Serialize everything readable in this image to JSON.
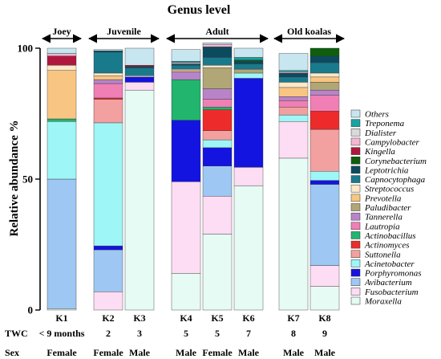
{
  "chart_data": {
    "type": "bar",
    "stacked": true,
    "title": "Genus level",
    "ylabel": "Relative abundance %",
    "ylim": [
      0,
      100
    ],
    "yticks": [
      "0",
      "50",
      "100"
    ],
    "categories": [
      "K1",
      "K2",
      "K3",
      "K4",
      "K5",
      "K6",
      "K7",
      "K8"
    ],
    "groups": [
      {
        "label": "Joey",
        "members": [
          "K1"
        ]
      },
      {
        "label": "Juvenile",
        "members": [
          "K2",
          "K3"
        ]
      },
      {
        "label": "Adult",
        "members": [
          "K4",
          "K5",
          "K6"
        ]
      },
      {
        "label": "Old koalas",
        "members": [
          "K7",
          "K8"
        ]
      }
    ],
    "rows": [
      {
        "label": "TWC",
        "values": [
          "< 9  months",
          "2",
          "3",
          "5",
          "5",
          "7",
          "8",
          "9"
        ]
      },
      {
        "label": "Sex",
        "values": [
          "Female",
          "Female",
          "Male",
          "Male",
          "Female",
          "Male",
          "Male",
          "Male"
        ]
      }
    ],
    "legend_position": "right",
    "series": [
      {
        "name": "Moraxella",
        "color": "#e6fbf3",
        "values": [
          0.5,
          0,
          84,
          14,
          29,
          47.5,
          58,
          9
        ]
      },
      {
        "name": "Fusobacterium",
        "color": "#fdddf3",
        "values": [
          0,
          7,
          3,
          35,
          14.5,
          7,
          14,
          8
        ]
      },
      {
        "name": "Avibacterium",
        "color": "#9ec8f3",
        "values": [
          49.5,
          16,
          0,
          0,
          11.5,
          0,
          0,
          31
        ]
      },
      {
        "name": "Porphyromonas",
        "color": "#1414e0",
        "values": [
          0,
          1.5,
          2,
          23.5,
          7,
          34,
          0,
          1.5
        ]
      },
      {
        "name": "Acinetobacter",
        "color": "#9ef6f6",
        "values": [
          22,
          47,
          0,
          0,
          3,
          2,
          2.5,
          3.5
        ]
      },
      {
        "name": "Suttonella",
        "color": "#f3a0a0",
        "values": [
          0,
          9,
          0,
          0,
          3.5,
          0,
          3,
          16
        ]
      },
      {
        "name": "Actinomyces",
        "color": "#ee2b2b",
        "values": [
          0,
          0.5,
          0,
          0,
          8,
          0,
          0,
          7
        ]
      },
      {
        "name": "Actinobacillus",
        "color": "#21b56e",
        "values": [
          1,
          0,
          0,
          15.5,
          1,
          0,
          0,
          0
        ]
      },
      {
        "name": "Lautropia",
        "color": "#f07fb6",
        "values": [
          0,
          5.5,
          0,
          0,
          3,
          0,
          2.5,
          6
        ]
      },
      {
        "name": "Tannerella",
        "color": "#b884c8",
        "values": [
          0,
          1.5,
          0,
          3,
          4,
          0,
          1.5,
          2
        ]
      },
      {
        "name": "Paludibacter",
        "color": "#b0a676",
        "values": [
          0,
          0,
          0,
          0,
          8,
          1.5,
          0,
          3
        ]
      },
      {
        "name": "Prevotella",
        "color": "#f8c582",
        "values": [
          18.5,
          1.5,
          0,
          0.5,
          0,
          0,
          3.5,
          2
        ]
      },
      {
        "name": "Streptococcus",
        "color": "#fde8c8",
        "values": [
          2,
          1,
          0.5,
          0.5,
          1,
          0,
          2,
          1.5
        ]
      },
      {
        "name": "Capnocytophaga",
        "color": "#197a8c",
        "values": [
          0,
          8,
          3,
          1.5,
          3,
          2,
          2,
          4
        ]
      },
      {
        "name": "Leptotrichia",
        "color": "#0c4a5f",
        "values": [
          0,
          0.5,
          0.5,
          0.5,
          4,
          1,
          1.5,
          2.5
        ]
      },
      {
        "name": "Corynebacterium",
        "color": "#0d5f0d",
        "values": [
          0,
          0,
          0,
          0,
          0,
          0.5,
          0,
          3
        ]
      },
      {
        "name": "Kingella",
        "color": "#b0173e",
        "values": [
          3.5,
          0,
          0.5,
          0,
          0,
          0,
          0,
          0
        ]
      },
      {
        "name": "Campylobacter",
        "color": "#f2b8d0",
        "values": [
          1,
          0,
          0,
          0.5,
          1,
          0,
          0.5,
          0
        ]
      },
      {
        "name": "Dialister",
        "color": "#d9d9d9",
        "values": [
          0,
          0,
          0,
          0,
          0,
          0,
          0,
          0
        ]
      },
      {
        "name": "Treponema",
        "color": "#15a3a3",
        "values": [
          0,
          0,
          0,
          0.5,
          0,
          1,
          0.5,
          0
        ]
      },
      {
        "name": "Others",
        "color": "#c8e6f0",
        "values": [
          2,
          0.5,
          6.5,
          4.5,
          0.5,
          3.5,
          6.5,
          0
        ]
      }
    ]
  }
}
